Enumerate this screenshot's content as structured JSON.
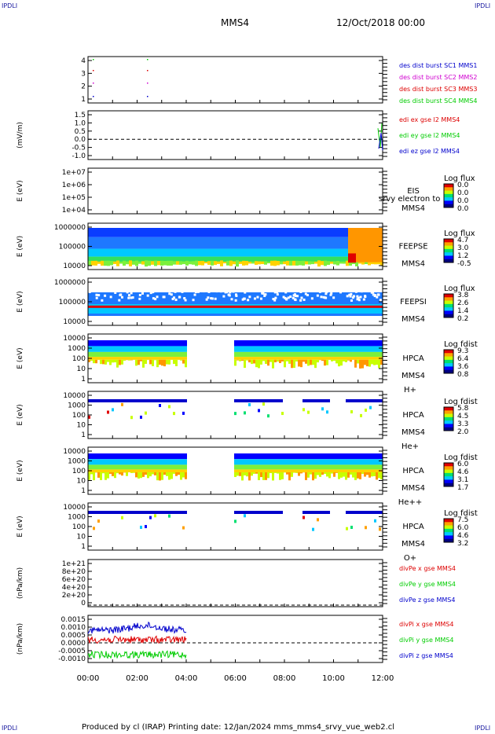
{
  "corner_labels": [
    "IPDLI",
    "IPDLI",
    "IPDLI",
    "IPDLI"
  ],
  "header": {
    "spacecraft": "MMS4",
    "date": "12/Oct/2018 00:00"
  },
  "footer": {
    "text": "Produced by cl (IRAP)   Printing date: 12/Jan/2024   mms_mms4_srvy_vue_web2.cl"
  },
  "x_axis": {
    "ticks": [
      "00:00",
      "02:00",
      "04:00",
      "06:00",
      "08:00",
      "10:00",
      "12:00"
    ]
  },
  "colors": {
    "blue": "#0000cc",
    "magenta": "#d000d0",
    "red": "#dd0000",
    "green": "#00cc00"
  },
  "chart_data": [
    {
      "type": "scatter",
      "name": "burst",
      "yticks": [
        "4",
        "3",
        "2",
        "1"
      ],
      "legend": [
        {
          "label": "des dist burst SC1 MMS1",
          "color": "#0000cc"
        },
        {
          "label": "des dist burst SC2 MMS2",
          "color": "#d000d0"
        },
        {
          "label": "des dist burst SC3 MMS3",
          "color": "#dd0000"
        },
        {
          "label": "des dist burst SC4 MMS4",
          "color": "#00cc00"
        }
      ]
    },
    {
      "type": "line",
      "name": "edi",
      "ylabel": "(mV/m)",
      "yticks": [
        "1.5",
        "1.0",
        "0.5",
        "0.0",
        "-0.5",
        "-1.0"
      ],
      "legend": [
        {
          "label": "edi ex gse l2 MMS4",
          "color": "#dd0000"
        },
        {
          "label": "edi ey gse l2 MMS4",
          "color": "#00cc00"
        },
        {
          "label": "edi ez gse l2 MMS4",
          "color": "#0000cc"
        }
      ]
    },
    {
      "type": "heatmap",
      "name": "eis",
      "ylabel": "E (eV)",
      "yticks": [
        "1e+07",
        "1e+06",
        "1e+05",
        "1e+04"
      ],
      "instrument": [
        "EIS",
        "MMS4"
      ],
      "overlay_text": "srvy electron to",
      "cbar_title": "Log flux",
      "cbar_ticks": [
        "0.0",
        "0.0",
        "0.0",
        "0.0"
      ]
    },
    {
      "type": "heatmap",
      "name": "feeps-e",
      "ylabel": "E (eV)",
      "yticks": [
        "1000000",
        "100000",
        "10000"
      ],
      "instrument": [
        "FEEPSE",
        "MMS4"
      ],
      "cbar_title": "Log flux",
      "cbar_ticks": [
        "4.7",
        "3.0",
        "1.2",
        "-0.5"
      ]
    },
    {
      "type": "heatmap",
      "name": "feeps-i",
      "ylabel": "E (eV)",
      "yticks": [
        "1000000",
        "100000",
        "10000"
      ],
      "instrument": [
        "FEEPSI",
        "MMS4"
      ],
      "cbar_title": "Log flux",
      "cbar_ticks": [
        "3.8",
        "2.6",
        "1.4",
        "0.2"
      ]
    },
    {
      "type": "heatmap",
      "name": "hpca-h",
      "ylabel": "E (eV)",
      "yticks": [
        "10000",
        "1000",
        "100",
        "10",
        "1"
      ],
      "instrument": [
        "HPCA",
        "MMS4",
        "H+"
      ],
      "cbar_title": "Log fdist",
      "cbar_ticks": [
        "9.3",
        "6.4",
        "3.6",
        "0.8"
      ]
    },
    {
      "type": "heatmap",
      "name": "hpca-he",
      "ylabel": "E (eV)",
      "yticks": [
        "10000",
        "1000",
        "100",
        "10",
        "1"
      ],
      "instrument": [
        "HPCA",
        "MMS4",
        "He+"
      ],
      "cbar_title": "Log fdist",
      "cbar_ticks": [
        "5.8",
        "4.5",
        "3.3",
        "2.0"
      ]
    },
    {
      "type": "heatmap",
      "name": "hpca-hepp",
      "ylabel": "E (eV)",
      "yticks": [
        "10000",
        "1000",
        "100",
        "10",
        "1"
      ],
      "instrument": [
        "HPCA",
        "MMS4",
        "He++"
      ],
      "cbar_title": "Log fdist",
      "cbar_ticks": [
        "6.0",
        "4.6",
        "3.1",
        "1.7"
      ]
    },
    {
      "type": "heatmap",
      "name": "hpca-o",
      "ylabel": "E (eV)",
      "yticks": [
        "10000",
        "1000",
        "100",
        "10",
        "1"
      ],
      "instrument": [
        "HPCA",
        "MMS4",
        "O+"
      ],
      "cbar_title": "Log fdist",
      "cbar_ticks": [
        "7.5",
        "6.0",
        "4.6",
        "3.2"
      ]
    },
    {
      "type": "line",
      "name": "divpe",
      "ylabel": "(nPa/km)",
      "yticks": [
        "1e+21",
        "8e+20",
        "6e+20",
        "4e+20",
        "2e+20",
        "0"
      ],
      "legend": [
        {
          "label": "divPe x gse MMS4",
          "color": "#dd0000"
        },
        {
          "label": "divPe y gse MMS4",
          "color": "#00cc00"
        },
        {
          "label": "divPe z gse MMS4",
          "color": "#0000cc"
        }
      ]
    },
    {
      "type": "line",
      "name": "divpi",
      "ylabel": "(nPa/km)",
      "yticks": [
        "0.0015",
        "0.0010",
        "0.0005",
        "0.0000",
        "-0.0005",
        "-0.0010"
      ],
      "legend": [
        {
          "label": "divPi x gse MMS4",
          "color": "#dd0000"
        },
        {
          "label": "divPi y gse MMS4",
          "color": "#00cc00"
        },
        {
          "label": "divPi z gse MMS4",
          "color": "#0000cc"
        }
      ]
    }
  ]
}
